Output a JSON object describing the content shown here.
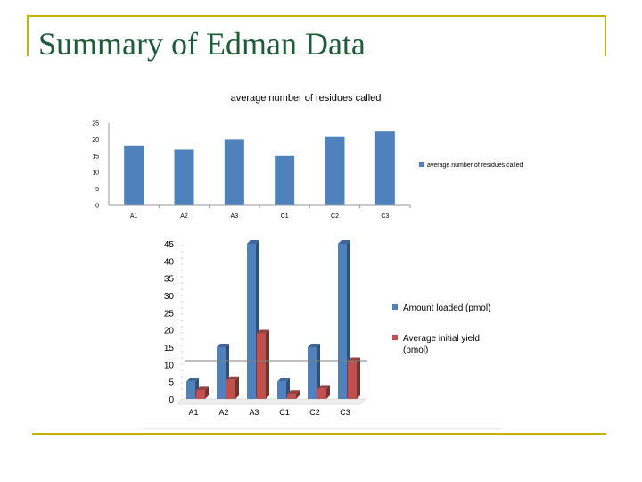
{
  "slide": {
    "title": "Summary of Edman Data",
    "accent_color": "#c8b400",
    "title_color": "#1e5c38"
  },
  "chart_data": [
    {
      "type": "bar",
      "title": "average number of residues called",
      "categories": [
        "A1",
        "A2",
        "A3",
        "C1",
        "C2",
        "C3"
      ],
      "series": [
        {
          "name": "average number of residues called",
          "values": [
            18,
            17,
            20,
            15,
            21,
            22.5
          ],
          "color": "#4f81bd"
        }
      ],
      "ylim": [
        0,
        25
      ],
      "yticks": [
        0,
        5,
        10,
        15,
        20,
        25
      ],
      "legend": "right",
      "grid": false
    },
    {
      "type": "bar",
      "title": "",
      "categories": [
        "A1",
        "A2",
        "A3",
        "C1",
        "C2",
        "C3"
      ],
      "series": [
        {
          "name": "Amount loaded (pmol)",
          "values": [
            5,
            15,
            45,
            5,
            15,
            45
          ],
          "color": "#4f81bd"
        },
        {
          "name": "Average initial yield (pmol)",
          "values": [
            2.5,
            5.5,
            19,
            1.5,
            3,
            11
          ],
          "color": "#c0504d"
        }
      ],
      "ylim": [
        0,
        45
      ],
      "yticks": [
        0,
        5,
        10,
        15,
        20,
        25,
        30,
        35,
        40,
        45
      ],
      "legend": "right",
      "grid": false
    }
  ]
}
